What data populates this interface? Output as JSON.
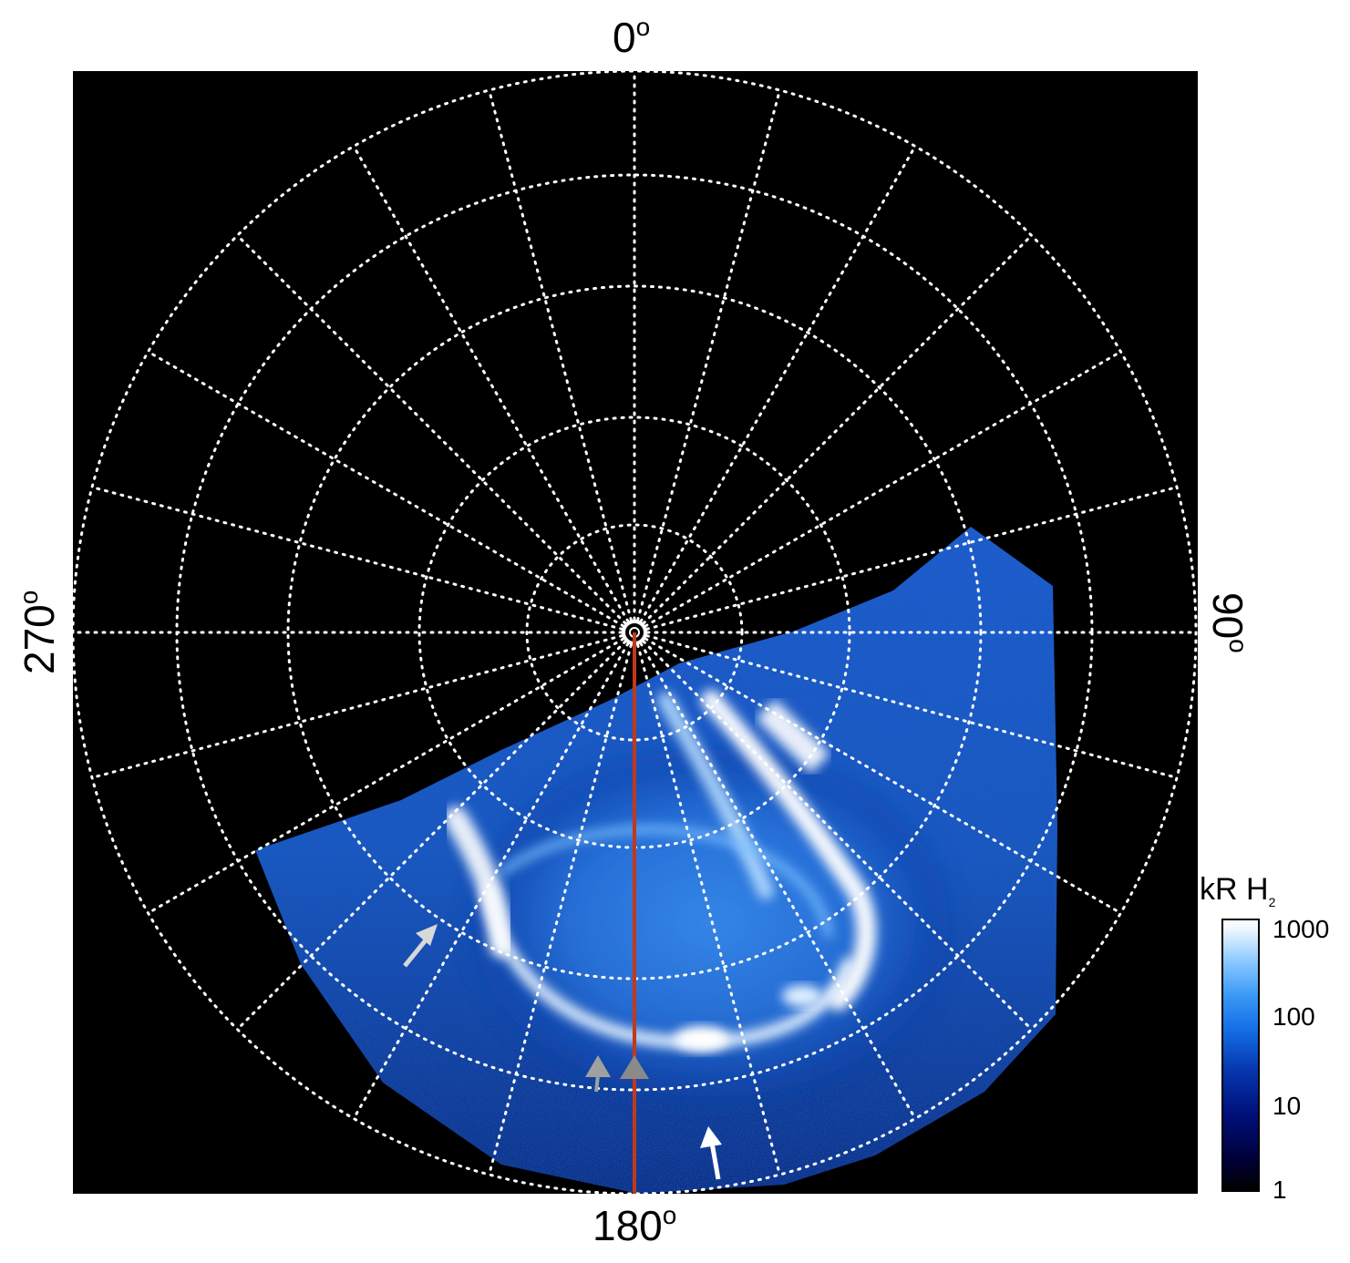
{
  "map": {
    "label_top": "0",
    "label_right": "90",
    "label_bottom": "180",
    "label_left": "270",
    "degree_symbol": "o",
    "background_color": "#000000",
    "grid_color": "#ffffff",
    "meridian_line_color": "#c0391b",
    "aurora_colors": [
      "#0a1f7a",
      "#1a5fd6",
      "#4aa3ff",
      "#bfe2ff",
      "#ffffff"
    ],
    "arrows": [
      {
        "color": "#d8d8d8",
        "name": "white-arrow-left"
      },
      {
        "color": "#ffffff",
        "name": "white-arrow-bottom"
      },
      {
        "color": "#a0a0a0",
        "name": "grey-triangle-left"
      },
      {
        "color": "#a0a0a0",
        "name": "grey-triangle-center"
      }
    ]
  },
  "colorbar": {
    "title": "kR H",
    "title_subscript": "2",
    "ticks": [
      "1000",
      "100",
      "10",
      "1"
    ],
    "scale": "log"
  }
}
